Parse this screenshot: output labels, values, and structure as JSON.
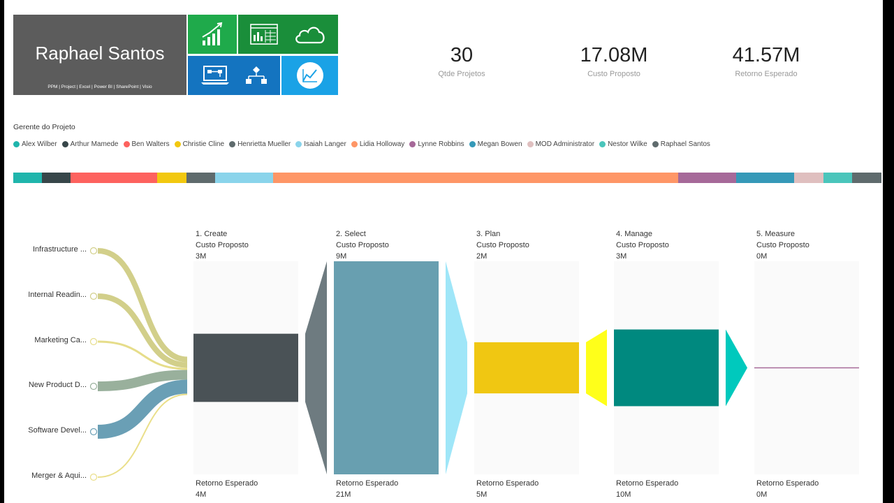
{
  "header": {
    "name": "Raphael Santos",
    "subtitle": "PPM | Project | Excel | Power BI | SharePoint | Visio",
    "tiles": [
      {
        "icon": "growth-chart-icon",
        "color": "#1faa4b"
      },
      {
        "icon": "dashboard-grid-icon",
        "color": "#1a8e3a"
      },
      {
        "icon": "cloud-icon",
        "color": "#1a8e3a"
      },
      {
        "icon": "laptop-workflow-icon",
        "color": "#1474c0"
      },
      {
        "icon": "hierarchy-icon",
        "color": "#1474c0"
      },
      {
        "icon": "analytics-circle-icon",
        "color": "#1aa2e6"
      }
    ]
  },
  "kpis": [
    {
      "value": "30",
      "label": "Qtde Projetos"
    },
    {
      "value": "17.08M",
      "label": "Custo Proposto"
    },
    {
      "value": "41.57M",
      "label": "Retorno Esperado"
    }
  ],
  "legend": {
    "title": "Gerente do Projeto",
    "items": [
      {
        "label": "Alex Wilber",
        "color": "#1fb5ac"
      },
      {
        "label": "Arthur Mamede",
        "color": "#374649"
      },
      {
        "label": "Ben Walters",
        "color": "#fd625e"
      },
      {
        "label": "Christie Cline",
        "color": "#f2c80f"
      },
      {
        "label": "Henrietta Mueller",
        "color": "#5f6b6d"
      },
      {
        "label": "Isaiah Langer",
        "color": "#8ad4eb"
      },
      {
        "label": "Lidia Holloway",
        "color": "#fe9666"
      },
      {
        "label": "Lynne Robbins",
        "color": "#a66999"
      },
      {
        "label": "Megan Bowen",
        "color": "#3599b8"
      },
      {
        "label": "MOD Administrator",
        "color": "#dfbfbf"
      },
      {
        "label": "Nestor Wilke",
        "color": "#4ac5bb"
      },
      {
        "label": "Raphael Santos",
        "color": "#5f6b6d"
      }
    ]
  },
  "color_bar": [
    {
      "color": "#1fb5ac",
      "share": 41
    },
    {
      "color": "#374649",
      "share": 41
    },
    {
      "color": "#fd625e",
      "share": 124
    },
    {
      "color": "#f2c80f",
      "share": 42
    },
    {
      "color": "#5f6b6d",
      "share": 41
    },
    {
      "color": "#8ad4eb",
      "share": 83
    },
    {
      "color": "#fe9666",
      "share": 580
    },
    {
      "color": "#a66999",
      "share": 83
    },
    {
      "color": "#3599b8",
      "share": 83
    },
    {
      "color": "#dfbfbf",
      "share": 42
    },
    {
      "color": "#4ac5bb",
      "share": 41
    },
    {
      "color": "#5f6b6d",
      "share": 42
    }
  ],
  "categories": [
    {
      "label": "Infrastructure ...",
      "color": "#d2cf8a"
    },
    {
      "label": "Internal Readin...",
      "color": "#d2cf8a"
    },
    {
      "label": "Marketing Ca...",
      "color": "#e6dd8a"
    },
    {
      "label": "New Product D...",
      "color": "#99b09c"
    },
    {
      "label": "Software Devel...",
      "color": "#6a9fb5"
    },
    {
      "label": "Merger & Aqui...",
      "color": "#eadf8a"
    }
  ],
  "stages": [
    {
      "name": "1. Create",
      "cost_label": "Custo Proposto",
      "cost": "3M",
      "return_label": "Retorno Esperado",
      "return": "4M",
      "fill": 0.32,
      "color": "#4a5256"
    },
    {
      "name": "2. Select",
      "cost_label": "Custo Proposto",
      "cost": "9M",
      "return_label": "Retorno Esperado",
      "return": "21M",
      "fill": 1.0,
      "color": "#689fb0"
    },
    {
      "name": "3. Plan",
      "cost_label": "Custo Proposto",
      "cost": "2M",
      "return_label": "Retorno Esperado",
      "return": "5M",
      "fill": 0.24,
      "color": "#f0c712"
    },
    {
      "name": "4. Manage",
      "cost_label": "Custo Proposto",
      "cost": "3M",
      "return_label": "Retorno Esperado",
      "return": "10M",
      "fill": 0.36,
      "color": "#00897f"
    },
    {
      "name": "5. Measure",
      "cost_label": "Custo Proposto",
      "cost": "0M",
      "return_label": "Retorno Esperado",
      "return": "0M",
      "fill": 0.0,
      "color": "#a66999"
    }
  ],
  "connectors": [
    {
      "color": "#6e7b80"
    },
    {
      "color": "#9fe6f8"
    },
    {
      "color": "#ffff1a"
    },
    {
      "color": "#00c9bd"
    }
  ]
}
